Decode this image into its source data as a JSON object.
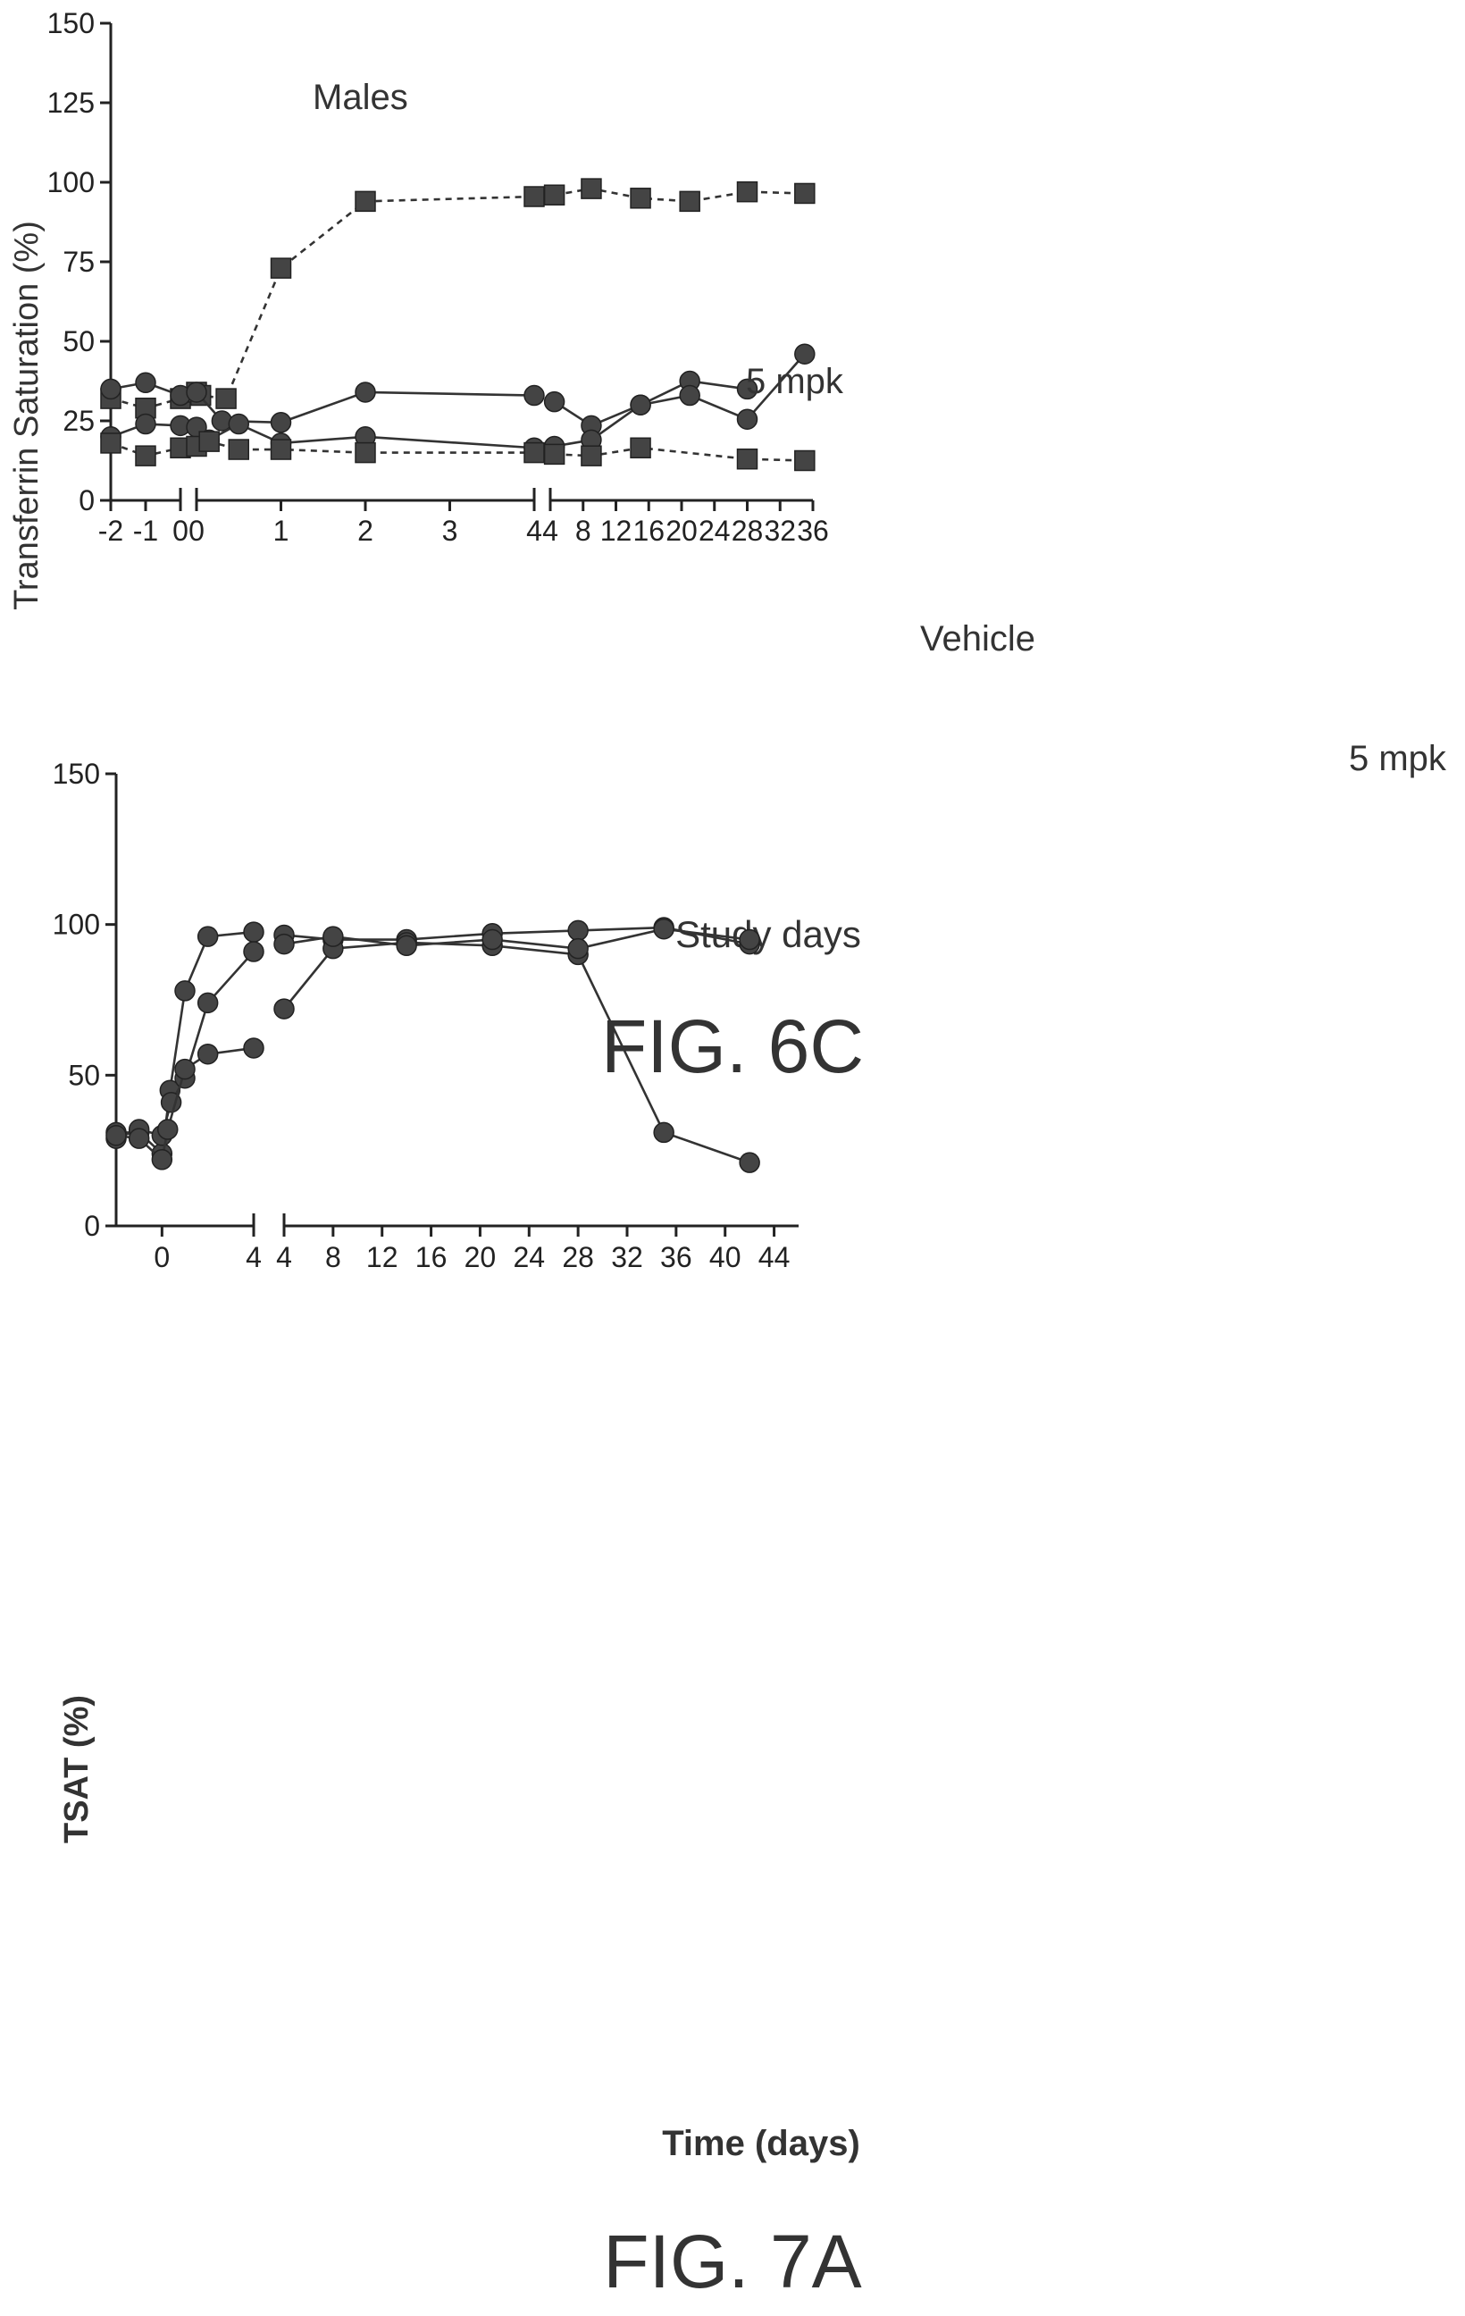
{
  "chart_data": [
    {
      "figure_label": "FIG. 6C",
      "type": "line",
      "annotation": "Males",
      "xlabel": "Study days",
      "ylabel": "Transferrin Saturation (%)",
      "ylim": [
        0,
        150
      ],
      "yticks": [
        "0",
        "25",
        "50",
        "75",
        "100",
        "125",
        "150"
      ],
      "xticks": [
        "-2",
        "-1",
        "0",
        "0",
        "1",
        "2",
        "3",
        "4",
        "4",
        "8",
        "12",
        "16",
        "20",
        "24",
        "28",
        "32",
        "36"
      ],
      "axis_segments": [
        {
          "name": "pre-dose",
          "xlim": [
            -2,
            0
          ],
          "ticks": [
            -2,
            -1,
            0
          ]
        },
        {
          "name": "first days",
          "xlim": [
            0,
            4
          ],
          "ticks": [
            0,
            1,
            2,
            3,
            4
          ]
        },
        {
          "name": "later days",
          "xlim": [
            4,
            36
          ],
          "ticks": [
            4,
            8,
            12,
            16,
            20,
            24,
            28,
            32,
            36
          ]
        }
      ],
      "series_labels": [
        "5 mpk",
        "Vehicle",
        "5 mpk"
      ],
      "series": [
        {
          "marker": "square",
          "dash": true,
          "label_index": 0,
          "points": [
            [
              0,
              -2,
              32
            ],
            [
              0,
              -1,
              29
            ],
            [
              0,
              0,
              32
            ],
            [
              1,
              0,
              34
            ],
            [
              1,
              0.05,
              33
            ],
            [
              1,
              0.35,
              32
            ],
            [
              1,
              1,
              73
            ],
            [
              1,
              2,
              94
            ],
            [
              1,
              4,
              95.5
            ],
            [
              2,
              4.5,
              96
            ],
            [
              2,
              9,
              98
            ],
            [
              2,
              15,
              95
            ],
            [
              2,
              21,
              94
            ],
            [
              2,
              28,
              97
            ],
            [
              2,
              35,
              96.5
            ]
          ]
        },
        {
          "marker": "circle",
          "dash": false,
          "label_index": 1,
          "points": [
            [
              0,
              -2,
              35
            ],
            [
              0,
              -1,
              37
            ],
            [
              0,
              0,
              33
            ],
            [
              1,
              0,
              34
            ],
            [
              1,
              0.3,
              25
            ],
            [
              1,
              1,
              24.5
            ],
            [
              1,
              2,
              34
            ],
            [
              1,
              4,
              33
            ],
            [
              2,
              4.5,
              31
            ],
            [
              2,
              9,
              23.5
            ],
            [
              2,
              15,
              30
            ],
            [
              2,
              21,
              37.5
            ],
            [
              2,
              28,
              35
            ]
          ]
        },
        {
          "marker": "circle",
          "dash": false,
          "points": [
            [
              0,
              -2,
              20
            ],
            [
              0,
              -1,
              24
            ],
            [
              0,
              0,
              23.5
            ],
            [
              1,
              0,
              23
            ],
            [
              1,
              0.15,
              19
            ],
            [
              1,
              0.5,
              24
            ],
            [
              1,
              1,
              18
            ],
            [
              1,
              2,
              20
            ],
            [
              1,
              4,
              16.5
            ],
            [
              2,
              4.5,
              17
            ],
            [
              2,
              9,
              19
            ],
            [
              2,
              15,
              30
            ],
            [
              2,
              21,
              33
            ],
            [
              2,
              28,
              25.5
            ],
            [
              2,
              35,
              46
            ]
          ]
        },
        {
          "marker": "square",
          "dash": true,
          "label_index": 2,
          "points": [
            [
              0,
              -2,
              18
            ],
            [
              0,
              -1,
              14
            ],
            [
              0,
              0,
              16.5
            ],
            [
              1,
              0,
              17
            ],
            [
              1,
              0.15,
              18.5
            ],
            [
              1,
              0.5,
              16
            ],
            [
              1,
              1,
              16
            ],
            [
              1,
              2,
              15
            ],
            [
              1,
              4,
              15
            ],
            [
              2,
              4.5,
              14.5
            ],
            [
              2,
              9,
              14
            ],
            [
              2,
              15,
              16.5
            ],
            [
              2,
              28,
              13
            ],
            [
              2,
              35,
              12.5
            ]
          ]
        }
      ]
    },
    {
      "figure_label": "FIG. 7A",
      "type": "line",
      "xlabel": "Time (days)",
      "ylabel": "TSAT (%)",
      "ylim": [
        0,
        150
      ],
      "yticks": [
        "0",
        "50",
        "100",
        "150"
      ],
      "xticks": [
        "0",
        "4",
        "4",
        "8",
        "12",
        "16",
        "20",
        "24",
        "28",
        "32",
        "36",
        "40",
        "44"
      ],
      "axis_segments": [
        {
          "name": "first days",
          "xlim": [
            -2,
            4
          ],
          "ticks": [
            0,
            4
          ]
        },
        {
          "name": "later days",
          "xlim": [
            4,
            46
          ],
          "ticks": [
            4,
            8,
            12,
            16,
            20,
            24,
            28,
            32,
            36,
            40,
            44
          ]
        }
      ],
      "series": [
        {
          "marker": "circle",
          "points": [
            [
              0,
              -2,
              31
            ],
            [
              0,
              -1,
              31
            ],
            [
              0,
              0,
              24
            ],
            [
              0,
              0.35,
              45
            ],
            [
              0,
              1,
              78
            ],
            [
              0,
              2,
              96
            ],
            [
              0,
              4,
              97.5
            ],
            [
              1,
              4,
              96.5
            ],
            [
              1,
              8,
              95
            ],
            [
              1,
              14,
              95
            ],
            [
              1,
              21,
              97
            ],
            [
              1,
              28,
              98
            ],
            [
              1,
              35,
              99
            ],
            [
              1,
              42,
              93.5
            ]
          ]
        },
        {
          "marker": "circle",
          "points": [
            [
              0,
              -2,
              29
            ],
            [
              0,
              -1,
              32
            ],
            [
              0,
              0,
              30
            ],
            [
              0,
              0.4,
              41
            ],
            [
              0,
              1,
              49
            ],
            [
              0,
              2,
              74
            ],
            [
              0,
              4,
              91
            ],
            [
              1,
              4,
              72
            ],
            [
              1,
              8,
              92
            ],
            [
              1,
              14,
              94
            ],
            [
              1,
              21,
              93
            ],
            [
              1,
              28,
              90
            ],
            [
              1,
              35,
              31
            ],
            [
              1,
              42,
              21
            ]
          ]
        },
        {
          "marker": "circle",
          "points": [
            [
              0,
              -2,
              30
            ],
            [
              0,
              -1,
              29
            ],
            [
              0,
              0,
              22
            ],
            [
              0,
              0.25,
              32
            ],
            [
              0,
              1,
              52
            ],
            [
              0,
              2,
              57
            ],
            [
              0,
              4,
              59
            ],
            [
              1,
              4,
              93.5
            ],
            [
              1,
              8,
              96
            ],
            [
              1,
              14,
              93
            ],
            [
              1,
              21,
              95
            ],
            [
              1,
              28,
              92
            ],
            [
              1,
              35,
              98.5
            ],
            [
              1,
              42,
              95
            ]
          ]
        }
      ]
    }
  ]
}
